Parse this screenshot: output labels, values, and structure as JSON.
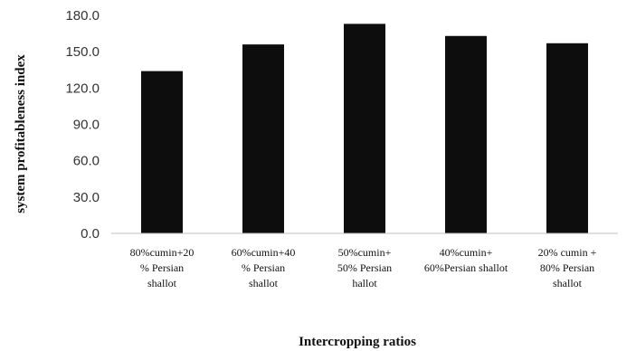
{
  "chart_data": {
    "type": "bar",
    "categories": [
      [
        "80%cumin+20",
        "% Persian",
        "shallot"
      ],
      [
        "60%cumin+40",
        "% Persian",
        "shallot"
      ],
      [
        "50%cumin+",
        "50% Persian",
        "hallot"
      ],
      [
        "40%cumin+",
        "60%Persian shallot"
      ],
      [
        "20% cumin +",
        "80% Persian",
        "shallot"
      ]
    ],
    "values": [
      134,
      156,
      173,
      163,
      157
    ],
    "xlabel": "Intercropping ratios",
    "ylabel": "system profitableness index",
    "ylim": [
      0,
      180
    ],
    "yticks": [
      "0.0",
      "30.0",
      "60.0",
      "90.0",
      "120.0",
      "150.0",
      "180.0"
    ],
    "bar_color": "#0d0d0d",
    "axis_color": "#bfbfbf",
    "grid": false,
    "legend": "none"
  }
}
